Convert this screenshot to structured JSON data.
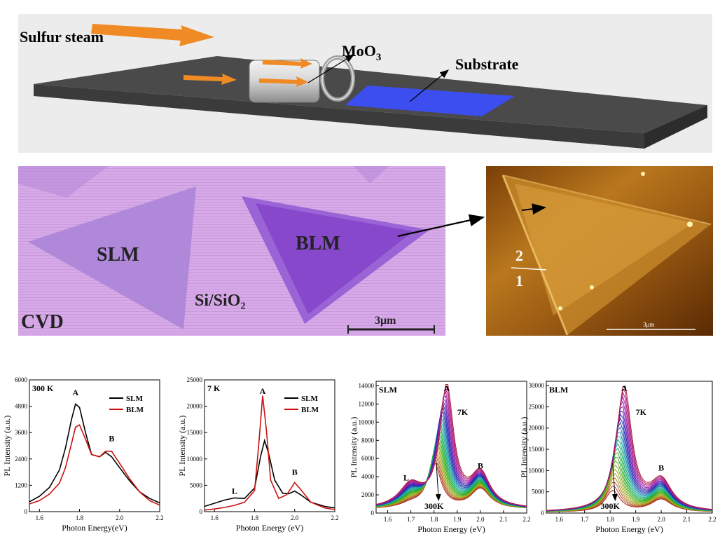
{
  "schematic": {
    "steam_label": "Sulfur steam",
    "moo3_label": "MoO",
    "moo3_sub": "3",
    "substrate_label": "Substrate"
  },
  "optical": {
    "slm": "SLM",
    "blm": "BLM",
    "si_label": "Si/SiO₂",
    "cvd": "CVD",
    "scale": "3μm"
  },
  "afm": {
    "layer_top": "2",
    "layer_bottom": "1",
    "scale": "3μm"
  },
  "colors": {
    "slm": "#000000",
    "blm": "#cc1111"
  },
  "chart_data": [
    {
      "type": "line",
      "title": "300 K",
      "xlabel": "Photon Energy(eV)",
      "ylabel": "PL Intensity (a.u.)",
      "xlim": [
        1.55,
        2.2
      ],
      "ylim": [
        0,
        6000
      ],
      "xticks": [
        "1.6",
        "1.8",
        "2.0",
        "2.2"
      ],
      "yticks": [
        "0",
        "1200",
        "2400",
        "3600",
        "4800",
        "6000"
      ],
      "legend": [
        "SLM",
        "BLM"
      ],
      "peaks": {
        "A": "A",
        "B": "B"
      },
      "series": [
        {
          "name": "SLM",
          "x": [
            1.55,
            1.6,
            1.65,
            1.7,
            1.73,
            1.76,
            1.78,
            1.8,
            1.83,
            1.86,
            1.9,
            1.93,
            1.96,
            2.0,
            2.05,
            2.1,
            2.15,
            2.2
          ],
          "values": [
            450,
            700,
            1100,
            1900,
            2900,
            4200,
            4900,
            4750,
            3600,
            2600,
            2500,
            2700,
            2500,
            2000,
            1400,
            900,
            600,
            400
          ]
        },
        {
          "name": "BLM",
          "x": [
            1.55,
            1.6,
            1.65,
            1.7,
            1.73,
            1.76,
            1.78,
            1.8,
            1.83,
            1.86,
            1.9,
            1.93,
            1.96,
            2.0,
            2.05,
            2.1,
            2.15,
            2.2
          ],
          "values": [
            350,
            500,
            800,
            1300,
            2000,
            3100,
            3850,
            3950,
            3300,
            2600,
            2500,
            2750,
            2750,
            2200,
            1500,
            900,
            500,
            300
          ]
        }
      ]
    },
    {
      "type": "line",
      "title": "7 K",
      "xlabel": "Photon Energy (eV)",
      "ylabel": "PL Intensity (a.u.)",
      "xlim": [
        1.55,
        2.2
      ],
      "ylim": [
        0,
        25000
      ],
      "xticks": [
        "1.6",
        "1.8",
        "2.0",
        "2.2"
      ],
      "yticks": [
        "0",
        "5000",
        "10000",
        "15000",
        "20000",
        "25000"
      ],
      "legend": [
        "SLM",
        "BLM"
      ],
      "peaks": {
        "L": "L",
        "A": "A",
        "B": "B"
      },
      "series": [
        {
          "name": "SLM",
          "x": [
            1.55,
            1.6,
            1.65,
            1.7,
            1.75,
            1.8,
            1.83,
            1.85,
            1.87,
            1.9,
            1.94,
            1.97,
            2.0,
            2.03,
            2.08,
            2.15,
            2.2
          ],
          "values": [
            1000,
            1600,
            2200,
            2600,
            2500,
            4500,
            10500,
            13500,
            11000,
            6000,
            3500,
            3400,
            3900,
            3200,
            1800,
            1000,
            700
          ]
        },
        {
          "name": "BLM",
          "x": [
            1.55,
            1.6,
            1.65,
            1.7,
            1.75,
            1.8,
            1.82,
            1.84,
            1.86,
            1.88,
            1.92,
            1.96,
            2.0,
            2.03,
            2.08,
            2.15,
            2.2
          ],
          "values": [
            300,
            500,
            800,
            1200,
            1800,
            4000,
            12500,
            22000,
            15000,
            6000,
            2500,
            3200,
            5500,
            4200,
            1800,
            700,
            400
          ]
        }
      ]
    },
    {
      "type": "line",
      "title": "SLM",
      "xlabel": "Photon Energy (eV)",
      "ylabel": "PL Intensity (a.u.)",
      "xlim": [
        1.55,
        2.2
      ],
      "ylim": [
        0,
        14500
      ],
      "xticks": [
        "1.6",
        "1.7",
        "1.8",
        "1.9",
        "2.0",
        "2.1",
        "2.2"
      ],
      "yticks": [
        "0",
        "2000",
        "4000",
        "6000",
        "8000",
        "10000",
        "12000",
        "14000"
      ],
      "annotations": {
        "A": "A",
        "B": "B",
        "L": "L",
        "low_T": "7K",
        "high_T": "300K"
      },
      "series_count": 26,
      "series": [
        {
          "name": "7K",
          "peakA": 13300,
          "posA": 1.855,
          "peakB": 3700,
          "posL": 1.7,
          "peakL": 2500
        },
        {
          "name": "300K",
          "peakA": 5000,
          "posA": 1.8,
          "peakB": 2200,
          "posL": 1.7,
          "peakL": 500
        }
      ]
    },
    {
      "type": "line",
      "title": "BLM",
      "xlabel": "Photon Energy (eV)",
      "ylabel": "PL Intensity (a.u.)",
      "xlim": [
        1.55,
        2.2
      ],
      "ylim": [
        0,
        31000
      ],
      "xticks": [
        "1.6",
        "1.7",
        "1.8",
        "1.9",
        "2.0",
        "2.1",
        "2.2"
      ],
      "yticks": [
        "0",
        "5000",
        "10000",
        "15000",
        "20000",
        "25000",
        "30000"
      ],
      "annotations": {
        "A": "A",
        "B": "B",
        "low_T": "7K",
        "high_T": "300K"
      },
      "series_count": 26,
      "series": [
        {
          "name": "7K",
          "peakA": 29500,
          "posA": 1.855,
          "peakB": 7000
        },
        {
          "name": "300K",
          "peakA": 5000,
          "posA": 1.81,
          "peakB": 3000
        }
      ]
    }
  ]
}
